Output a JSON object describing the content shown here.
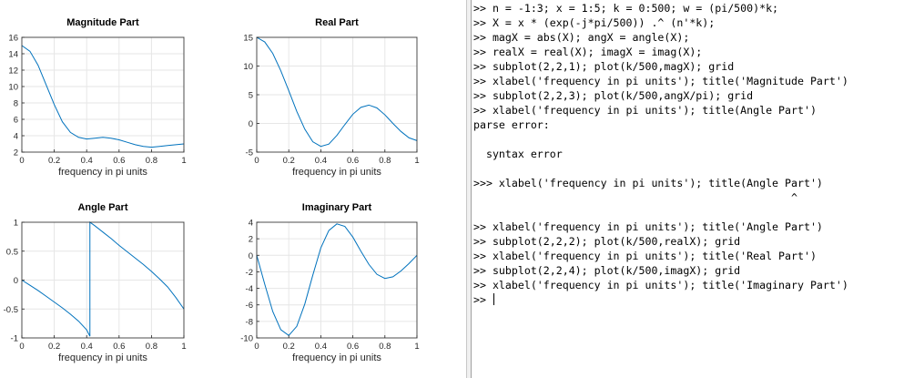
{
  "figure": {
    "line_color": "#0072bd",
    "chart_data": [
      {
        "type": "line",
        "title": "Magnitude Part",
        "xlabel": "frequency in pi units",
        "ylabel": "",
        "xlim": [
          0,
          1
        ],
        "ylim": [
          2,
          16
        ],
        "xticks": [
          0,
          0.2,
          0.4,
          0.6,
          0.8,
          1
        ],
        "yticks": [
          2,
          4,
          6,
          8,
          10,
          12,
          14,
          16
        ],
        "grid": true,
        "series": [
          {
            "x": [
              0,
              0.05,
              0.1,
              0.15,
              0.2,
              0.25,
              0.3,
              0.35,
              0.4,
              0.45,
              0.5,
              0.55,
              0.6,
              0.65,
              0.7,
              0.75,
              0.8,
              0.85,
              0.9,
              0.95,
              1.0
            ],
            "values": [
              15.0,
              14.3,
              12.6,
              10.2,
              7.8,
              5.7,
              4.4,
              3.8,
              3.6,
              3.7,
              3.8,
              3.7,
              3.5,
              3.2,
              2.9,
              2.7,
              2.6,
              2.7,
              2.8,
              2.9,
              3.0
            ]
          }
        ]
      },
      {
        "type": "line",
        "title": "Real Part",
        "xlabel": "frequency in pi units",
        "ylabel": "",
        "xlim": [
          0,
          1
        ],
        "ylim": [
          -5,
          15
        ],
        "xticks": [
          0,
          0.2,
          0.4,
          0.6,
          0.8,
          1
        ],
        "yticks": [
          -5,
          0,
          5,
          10,
          15
        ],
        "grid": true,
        "series": [
          {
            "x": [
              0,
              0.05,
              0.1,
              0.15,
              0.2,
              0.25,
              0.3,
              0.35,
              0.4,
              0.45,
              0.5,
              0.55,
              0.6,
              0.65,
              0.7,
              0.75,
              0.8,
              0.85,
              0.9,
              0.95,
              1.0
            ],
            "values": [
              15.0,
              14.2,
              12.2,
              9.2,
              5.7,
              2.1,
              -1.0,
              -3.2,
              -4.0,
              -3.6,
              -2.1,
              -0.2,
              1.6,
              2.8,
              3.2,
              2.7,
              1.5,
              0.0,
              -1.4,
              -2.5,
              -3.0
            ]
          }
        ]
      },
      {
        "type": "line",
        "title": "Angle Part",
        "xlabel": "frequency in pi units",
        "ylabel": "",
        "xlim": [
          0,
          1
        ],
        "ylim": [
          -1,
          1
        ],
        "xticks": [
          0,
          0.2,
          0.4,
          0.6,
          0.8,
          1
        ],
        "yticks": [
          -1,
          -0.5,
          0,
          0.5,
          1
        ],
        "grid": true,
        "series": [
          {
            "x": [
              0,
              0.05,
              0.1,
              0.15,
              0.2,
              0.25,
              0.3,
              0.35,
              0.4,
              0.42,
              0.42,
              0.45,
              0.5,
              0.55,
              0.6,
              0.65,
              0.7,
              0.75,
              0.8,
              0.85,
              0.9,
              0.95,
              1.0
            ],
            "values": [
              0,
              -0.09,
              -0.18,
              -0.28,
              -0.38,
              -0.48,
              -0.59,
              -0.71,
              -0.86,
              -0.97,
              1.0,
              0.94,
              0.83,
              0.72,
              0.6,
              0.49,
              0.38,
              0.27,
              0.15,
              0.02,
              -0.12,
              -0.3,
              -0.5
            ]
          }
        ]
      },
      {
        "type": "line",
        "title": "Imaginary Part",
        "xlabel": "frequency in pi units",
        "ylabel": "",
        "xlim": [
          0,
          1
        ],
        "ylim": [
          -10,
          4
        ],
        "xticks": [
          0,
          0.2,
          0.4,
          0.6,
          0.8,
          1
        ],
        "yticks": [
          -10,
          -8,
          -6,
          -4,
          -2,
          0,
          2,
          4
        ],
        "grid": true,
        "series": [
          {
            "x": [
              0,
              0.05,
              0.1,
              0.15,
              0.2,
              0.25,
              0.3,
              0.35,
              0.4,
              0.45,
              0.5,
              0.55,
              0.6,
              0.65,
              0.7,
              0.75,
              0.8,
              0.85,
              0.9,
              0.95,
              1.0
            ],
            "values": [
              0,
              -3.5,
              -6.8,
              -9.0,
              -9.7,
              -8.6,
              -5.9,
              -2.4,
              0.9,
              3.0,
              3.8,
              3.5,
              2.2,
              0.5,
              -1.1,
              -2.3,
              -2.8,
              -2.6,
              -1.9,
              -1.0,
              0.0
            ]
          }
        ]
      }
    ]
  },
  "console": {
    "lines": [
      ">> n = -1:3; x = 1:5; k = 0:500; w = (pi/500)*k;",
      ">> X = x * (exp(-j*pi/500)) .^ (n'*k);",
      ">> magX = abs(X); angX = angle(X);",
      ">> realX = real(X); imagX = imag(X);",
      ">> subplot(2,2,1); plot(k/500,magX); grid",
      ">> xlabel('frequency in pi units'); title('Magnitude Part')",
      ">> subplot(2,2,3); plot(k/500,angX/pi); grid",
      ">> xlabel('frequency in pi units'); title(Angle Part')",
      "parse error:",
      "",
      "  syntax error",
      "",
      ">>> xlabel('frequency in pi units'); title(Angle Part')",
      "                                                  ^",
      "",
      ">> xlabel('frequency in pi units'); title('Angle Part')",
      ">> subplot(2,2,2); plot(k/500,realX); grid",
      ">> xlabel('frequency in pi units'); title('Real Part')",
      ">> subplot(2,2,4); plot(k/500,imagX); grid",
      ">> xlabel('frequency in pi units'); title('Imaginary Part')"
    ],
    "prompt": ">> "
  }
}
